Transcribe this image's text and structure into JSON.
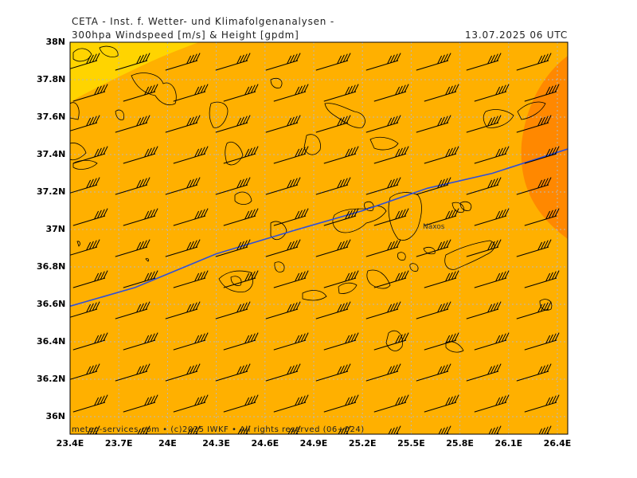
{
  "header": {
    "organization": "CETA - Inst. f. Wetter- und Klimafolgenanalysen -",
    "title": "300hpa Windspeed [m/s] & Height [gpdm]",
    "datetime": "13.07.2025 06 UTC"
  },
  "footer": {
    "credit": "meteo-services.com • (c)2025 IWKF • All rights reserved (06+024)"
  },
  "map": {
    "lon_range": [
      23.4,
      26.5
    ],
    "lat_range": [
      35.9,
      38.0
    ],
    "lon_ticks": [
      "23.4E",
      "23.7E",
      "24E",
      "24.3E",
      "24.6E",
      "24.9E",
      "25.2E",
      "25.5E",
      "25.8E",
      "26.1E",
      "26.4E"
    ],
    "lat_ticks": [
      "38N",
      "37.8N",
      "37.6N",
      "37.4N",
      "37.2N",
      "37N",
      "36.8N",
      "36.6N",
      "36.4N",
      "36.2N",
      "36N"
    ],
    "place_labels": [
      "Naxos"
    ],
    "contour_line": {
      "color": "#2e4fdc",
      "points": [
        [
          23.4,
          36.59
        ],
        [
          23.8,
          36.69
        ],
        [
          24.3,
          36.87
        ],
        [
          24.8,
          37.0
        ],
        [
          25.2,
          37.1
        ],
        [
          25.6,
          37.22
        ],
        [
          26.0,
          37.3
        ],
        [
          26.5,
          37.44
        ]
      ]
    },
    "colors": {
      "background_fill": "#ffb000",
      "low_wind_fill": "#ffd400",
      "high_wind_fill": "#ff8800",
      "grid": "#b8b8b8",
      "barbs": "#000000",
      "coastline": "#000000"
    }
  }
}
